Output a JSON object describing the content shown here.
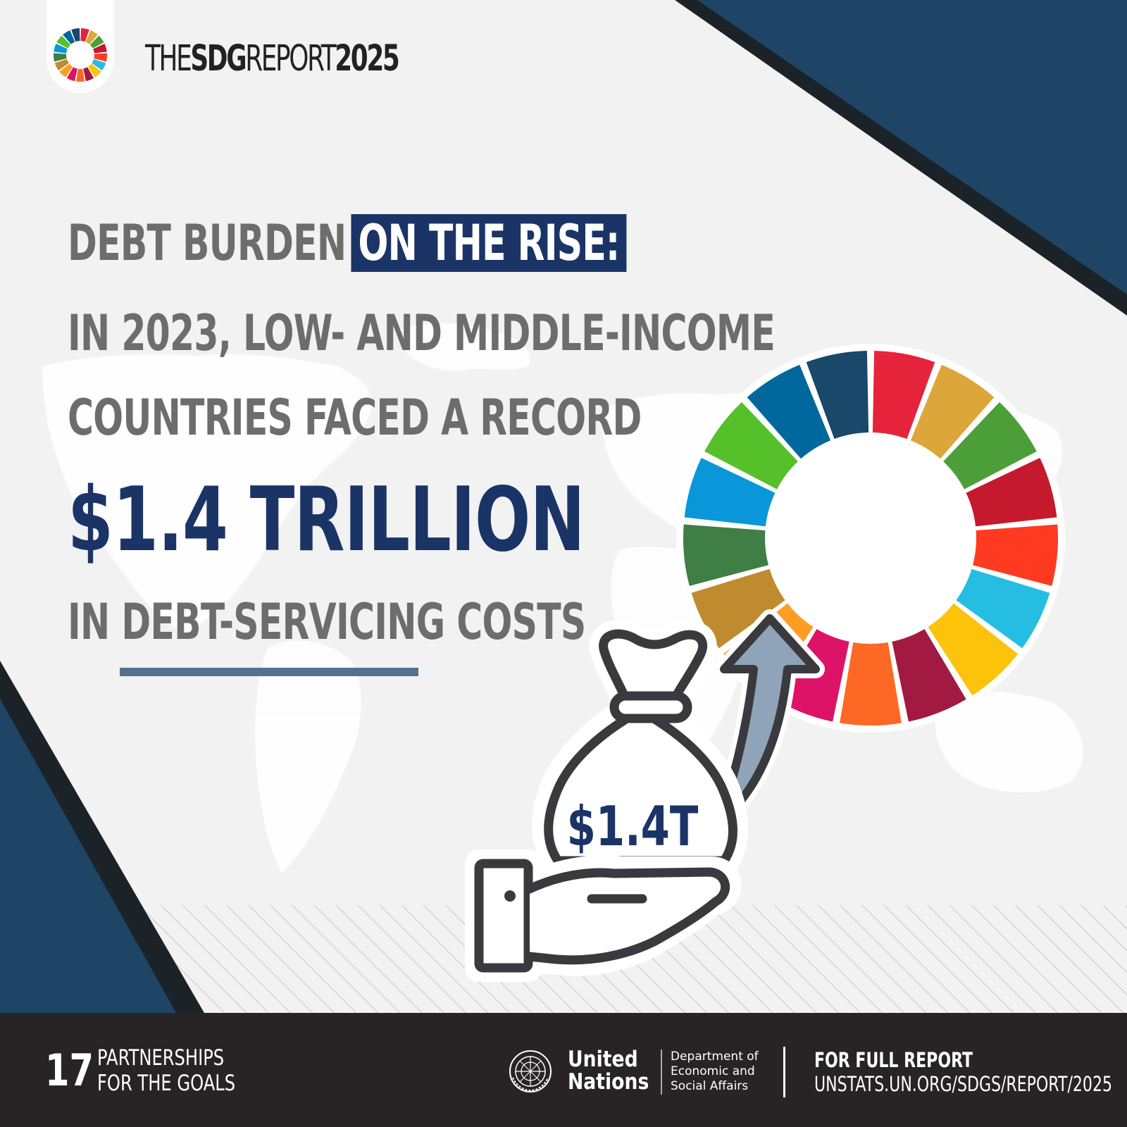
{
  "header": {
    "title_part1": "THE",
    "title_part2": "SDG",
    "title_part3": "REPORT",
    "title_part4": "2025"
  },
  "headline": {
    "line1_gray": "DEBT BURDEN",
    "line1_box": "ON THE RISE:",
    "line2": "IN 2023, LOW- AND MIDDLE-INCOME",
    "line3": "COUNTRIES FACED A RECORD",
    "big_number": "$1.4 TRILLION",
    "line5_a": "IN ",
    "line5_b": "DEBT-SERVICING",
    "line5_c": " COSTS"
  },
  "illustration": {
    "bag_label": "$1.4T",
    "icons": [
      "sdg-wheel-icon",
      "money-bag-icon",
      "hand-icon",
      "arrow-up-icon",
      "world-map-icon"
    ]
  },
  "footer": {
    "goal_number": "17",
    "goal_name_line1": "PARTNERSHIPS",
    "goal_name_line2": "FOR THE GOALS",
    "org_line1": "United",
    "org_line2": "Nations",
    "dept_line1": "Department of",
    "dept_line2": "Economic and",
    "dept_line3": "Social Affairs",
    "report_label": "FOR FULL REPORT",
    "report_url": "UNSTATS.UN.ORG/SDGS/REPORT/2025"
  },
  "colors": {
    "navy": "#1b3466",
    "dark_blue": "#1e4566",
    "gray_text": "#6d6d6d",
    "footer_bg": "#282425",
    "underline": "#54718f",
    "sdg": [
      "#e5243b",
      "#dda63a",
      "#4c9f38",
      "#c5192d",
      "#ff3a21",
      "#26bde2",
      "#fcc30b",
      "#a21942",
      "#fd6925",
      "#dd1367",
      "#fd9d24",
      "#bf8b2e",
      "#3f7e44",
      "#0a97d9",
      "#56c02b",
      "#00689d",
      "#19486a"
    ]
  }
}
